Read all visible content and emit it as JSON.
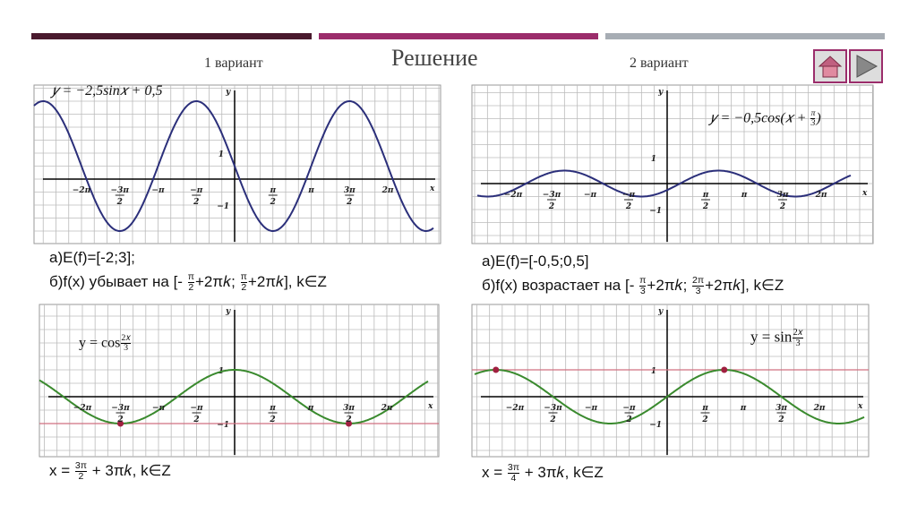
{
  "header": {
    "title": "Решение",
    "variant1": "1 вариант",
    "variant2": "2 вариант"
  },
  "graphs": [
    {
      "formula": [
        "𝑦 = −2,5sin𝑥 + 0,5"
      ],
      "xticks": [
        "−2π",
        {
          "num": "−3π",
          "den": "2"
        },
        "−π",
        {
          "num": "−π",
          "den": "2"
        },
        {
          "num": "π",
          "den": "2"
        },
        "π",
        {
          "num": "3π",
          "den": "2"
        },
        "2π"
      ],
      "yticks": [
        "1",
        "−1"
      ],
      "x_axis": "x",
      "y_axis": "y"
    },
    {
      "formula": [
        "𝑦 = −0,5cos(𝑥 + ",
        {
          "num": "π",
          "den": "3"
        },
        ")"
      ],
      "xticks": [
        "−2π",
        {
          "num": "−3π",
          "den": "2"
        },
        "−π",
        {
          "num": "−π",
          "den": "2"
        },
        {
          "num": "π",
          "den": "2"
        },
        "π",
        {
          "num": "3π",
          "den": "2"
        },
        "2π"
      ],
      "yticks": [
        "1",
        "−1"
      ],
      "x_axis": "x",
      "y_axis": "y"
    },
    {
      "formula": [
        "y = cos",
        {
          "num": "2𝑥",
          "den": "3"
        }
      ],
      "xticks": [
        "−2π",
        {
          "num": "−3π",
          "den": "2"
        },
        "−π",
        {
          "num": "−π",
          "den": "2"
        },
        {
          "num": "π",
          "den": "2"
        },
        "π",
        {
          "num": "3π",
          "den": "2"
        },
        "2π"
      ],
      "yticks": [
        "1",
        "−1"
      ],
      "x_axis": "x",
      "y_axis": "y"
    },
    {
      "formula": [
        "y =  sin",
        {
          "num": "2𝑥",
          "den": "3"
        }
      ],
      "xticks": [
        "−2π",
        {
          "num": "−3π",
          "den": "2"
        },
        "−π",
        {
          "num": "−π",
          "den": "2"
        },
        {
          "num": "π",
          "den": "2"
        },
        "π",
        {
          "num": "3π",
          "den": "2"
        },
        "2π"
      ],
      "yticks": [
        "1",
        "−1"
      ],
      "x_axis": "x",
      "y_axis": "y"
    }
  ],
  "answers": {
    "v1_range": [
      "а)E(f)=[-2;3];"
    ],
    "v1_monotony": [
      "б)f(x) убывает на [- ",
      {
        "num": "π",
        "den": "2"
      },
      "+2π𝑘; ",
      {
        "num": "π",
        "den": "2"
      },
      "+2π𝑘], k∈Z"
    ],
    "v1_solution": [
      "x = ",
      {
        "num": "3π",
        "den": "2"
      },
      " + 3π𝑘, k∈Z"
    ],
    "v2_range": [
      "а)E(f)=[-0,5;0,5]"
    ],
    "v2_monotony": [
      "б)f(x) возрастает на [- ",
      {
        "num": "π",
        "den": "3"
      },
      "+2π𝑘; ",
      {
        "num": "2π",
        "den": "3"
      },
      "+2π𝑘], k∈Z"
    ],
    "v2_solution": [
      "x = ",
      {
        "num": "3π",
        "den": "4"
      },
      " + 3π𝑘, k∈Z"
    ]
  }
}
